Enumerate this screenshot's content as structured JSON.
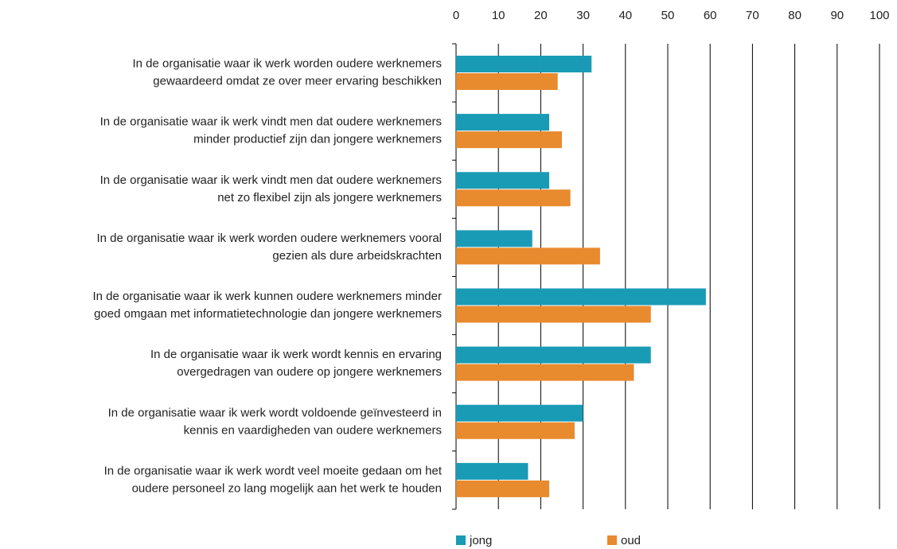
{
  "chart_data": {
    "type": "hbar",
    "categories": [
      [
        "In de organisatie waar ik werk worden oudere werknemers",
        "gewaardeerd omdat ze over meer ervaring beschikken"
      ],
      [
        "In de organisatie waar ik werk vindt men dat oudere werknemers",
        "minder productief zijn dan jongere werknemers"
      ],
      [
        "In de organisatie waar ik werk vindt men dat oudere werknemers",
        "net zo flexibel zijn als jongere werknemers"
      ],
      [
        "In de organisatie waar ik werk worden oudere werknemers vooral",
        "gezien als dure arbeidskrachten"
      ],
      [
        "In de organisatie waar ik werk kunnen oudere werknemers minder",
        "goed omgaan met informatietechnologie dan jongere werknemers"
      ],
      [
        "In de organisatie waar ik werk wordt kennis en ervaring",
        "overgedragen van oudere op jongere werknemers"
      ],
      [
        "In de organisatie waar ik werk wordt voldoende geïnvesteerd in",
        "kennis en vaardigheden van oudere werknemers"
      ],
      [
        "In de organisatie waar ik werk wordt veel moeite gedaan om het",
        "oudere personeel zo lang mogelijk aan het werk te houden"
      ]
    ],
    "series": [
      {
        "name": "jong",
        "color": "#1a9bb5",
        "values": [
          32,
          22,
          22,
          18,
          59,
          46,
          30,
          17
        ]
      },
      {
        "name": "oud",
        "color": "#e88a2e",
        "values": [
          24,
          25,
          27,
          34,
          46,
          42,
          28,
          22
        ]
      }
    ],
    "xlim": [
      0,
      100
    ],
    "xticks": [
      0,
      10,
      20,
      30,
      40,
      50,
      60,
      70,
      80,
      90,
      100
    ],
    "grid": true
  }
}
